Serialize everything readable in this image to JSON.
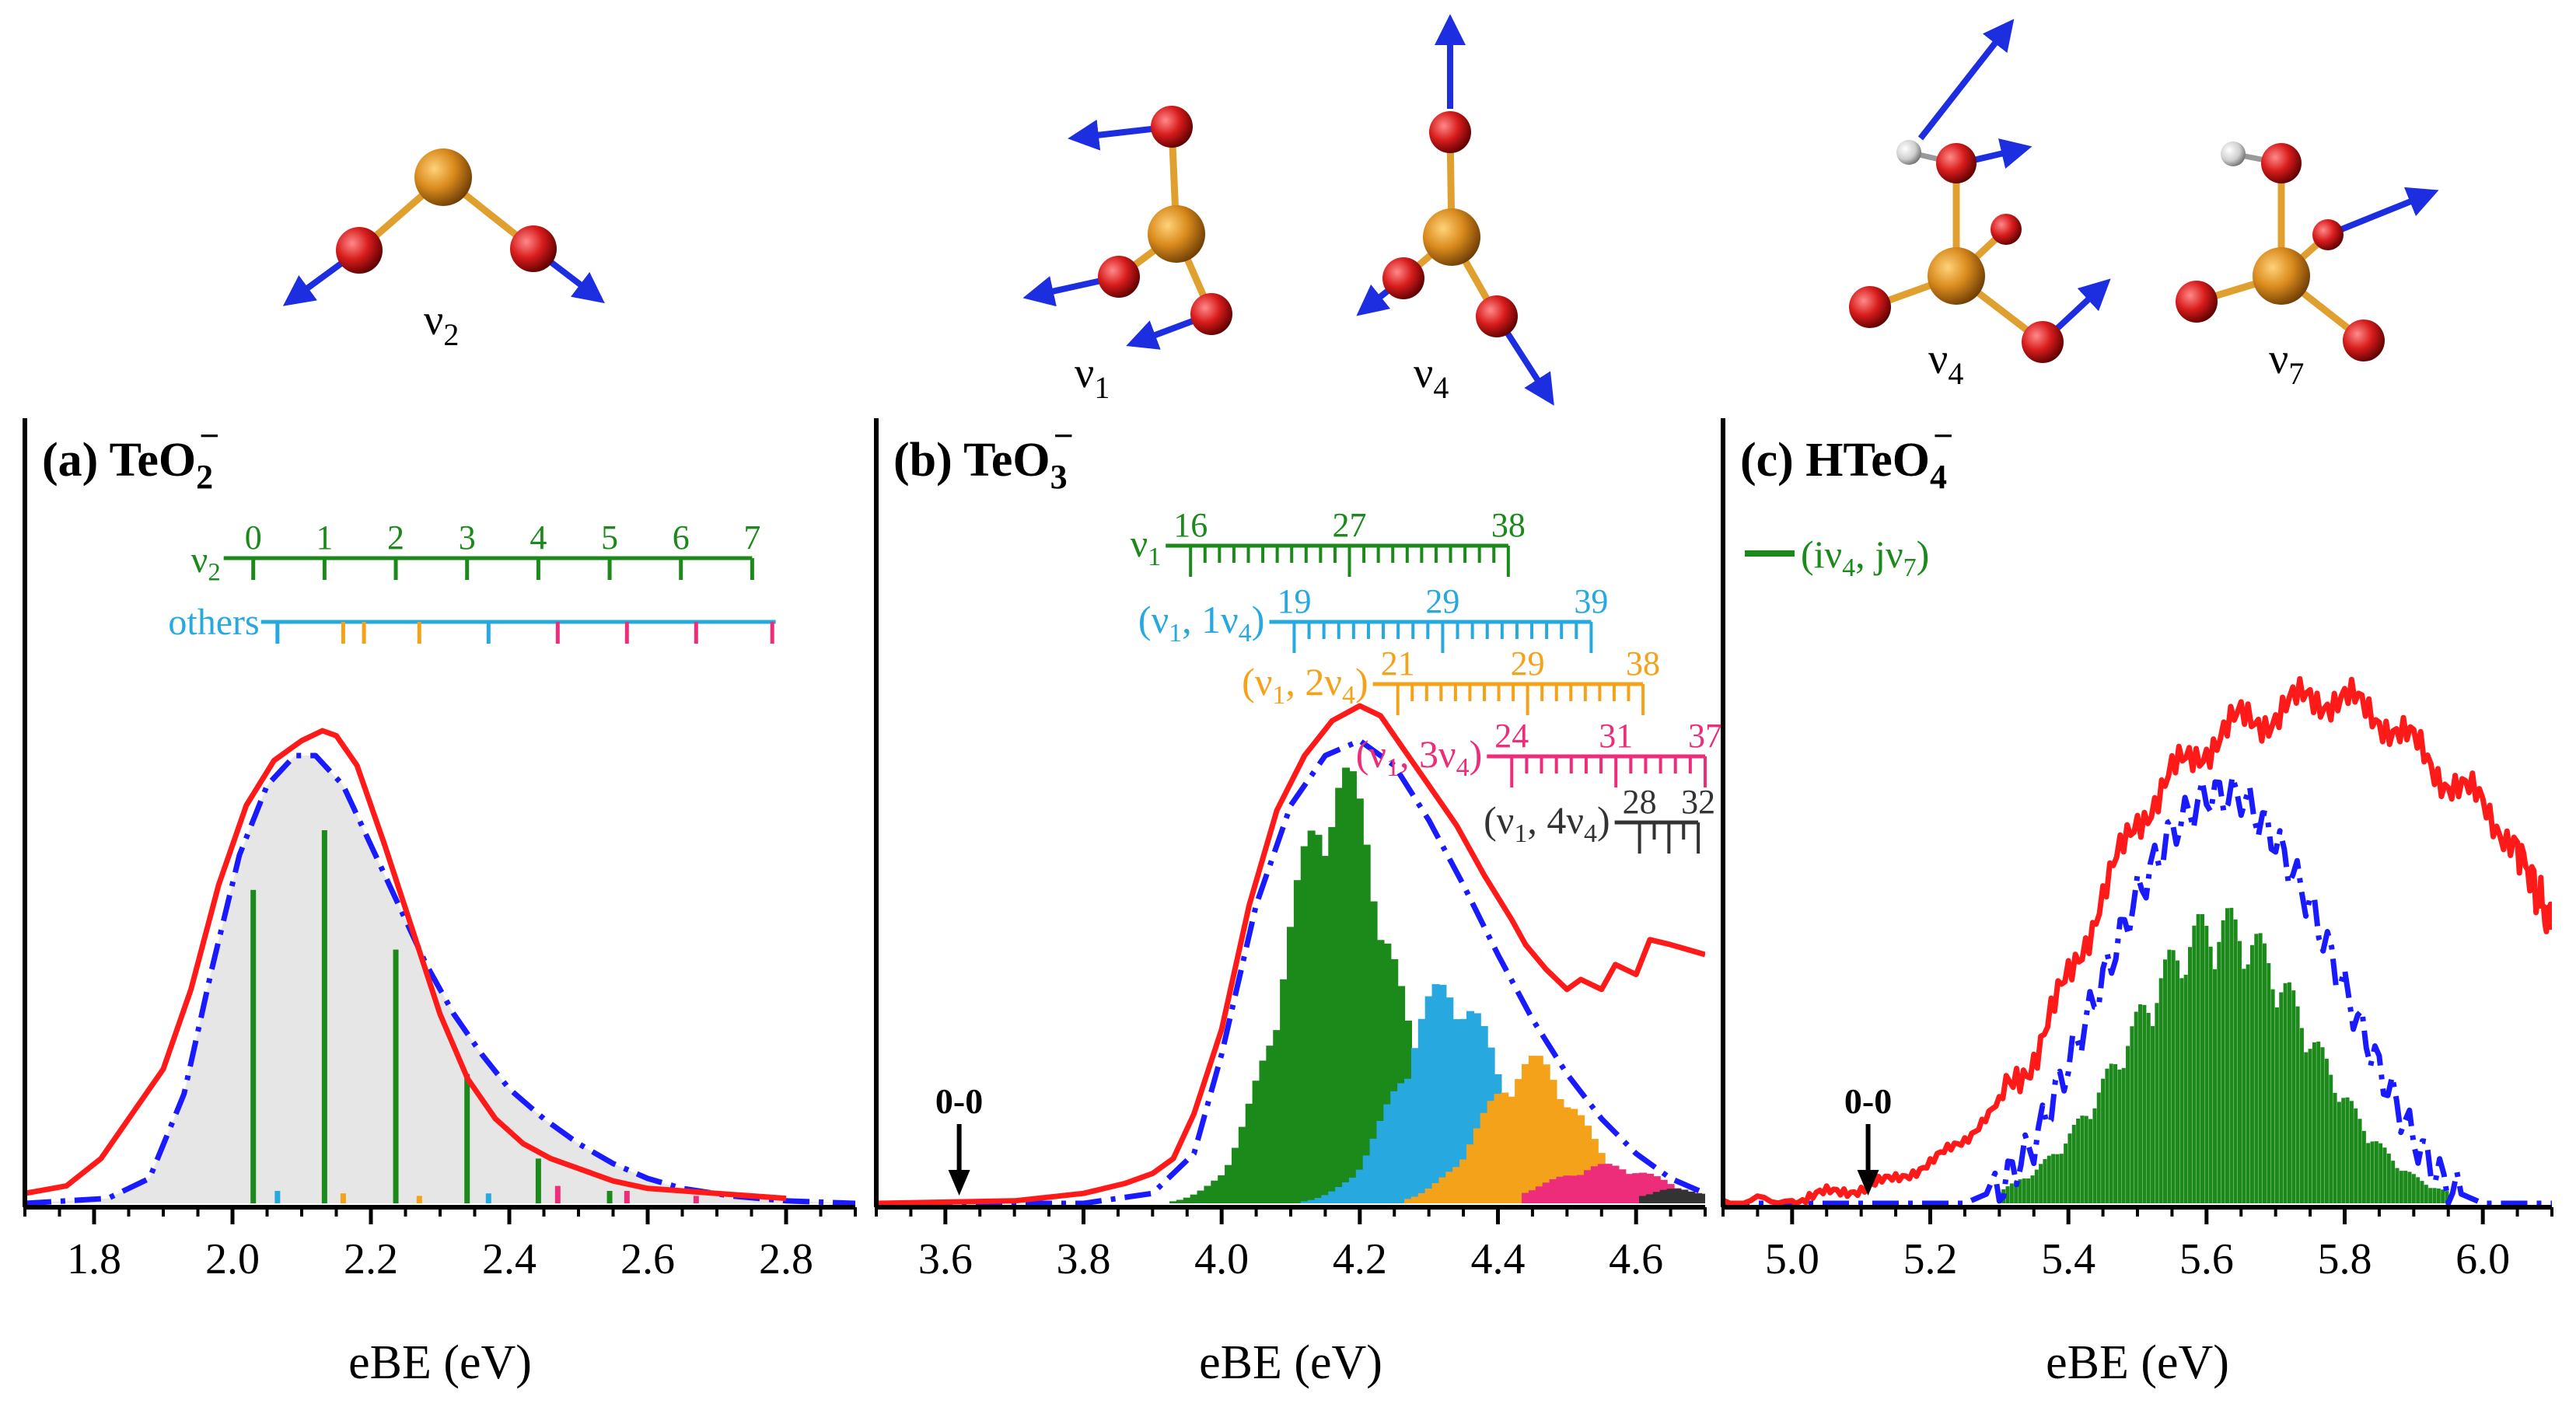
{
  "colors": {
    "experiment": "#ff1a1a",
    "simulation": "#1a1aff",
    "green": "#1b8a1b",
    "cyan": "#27a9e0",
    "orange": "#f5a21b",
    "magenta": "#ee2d7a",
    "gray": "#333333",
    "fill": "#e6e6e6",
    "te": "#d98a1c",
    "o": "#d81c1c",
    "h": "#d8d8d8",
    "arrow": "#1c2ee0"
  },
  "molecules": {
    "teo2_mode": {
      "sym": "ν",
      "sub": "2"
    },
    "teo3_mode_a": {
      "sym": "ν",
      "sub": "1"
    },
    "teo3_mode_b": {
      "sym": "ν",
      "sub": "4"
    },
    "hteo4_mode_a": {
      "sym": "ν",
      "sub": "4"
    },
    "hteo4_mode_b": {
      "sym": "ν",
      "sub": "7"
    }
  },
  "chart_data": [
    {
      "type": "bar",
      "panel": "(a)",
      "title": {
        "main": "TeO",
        "sub": "2",
        "sup": "−"
      },
      "xlabel": "eBE (eV)",
      "xlim": [
        1.7,
        2.9
      ],
      "ylim": [
        0,
        1
      ],
      "xticks": [
        1.8,
        2.0,
        2.2,
        2.4,
        2.6,
        2.8
      ],
      "xtick_labels": [
        "1.8",
        "2.0",
        "2.2",
        "2.4",
        "2.6",
        "2.8"
      ],
      "progressions": [
        {
          "label": "ν2",
          "color": "green",
          "start": 2.03,
          "spacing": 0.103,
          "count": 8,
          "labels": [
            "0",
            "1",
            "2",
            "3",
            "4",
            "5",
            "6",
            "7"
          ]
        },
        {
          "label": "others",
          "color": "cyan",
          "ticks": [
            {
              "x": 2.065,
              "c": "cyan"
            },
            {
              "x": 2.16,
              "c": "orange"
            },
            {
              "x": 2.19,
              "c": "orange"
            },
            {
              "x": 2.27,
              "c": "orange"
            },
            {
              "x": 2.37,
              "c": "cyan"
            },
            {
              "x": 2.47,
              "c": "magenta"
            },
            {
              "x": 2.57,
              "c": "magenta"
            },
            {
              "x": 2.67,
              "c": "magenta"
            },
            {
              "x": 2.78,
              "c": "magenta"
            }
          ]
        }
      ],
      "sticks": [
        {
          "x": 2.03,
          "y": 0.63,
          "c": "green"
        },
        {
          "x": 2.133,
          "y": 0.75,
          "c": "green"
        },
        {
          "x": 2.236,
          "y": 0.51,
          "c": "green"
        },
        {
          "x": 2.339,
          "y": 0.26,
          "c": "green"
        },
        {
          "x": 2.442,
          "y": 0.09,
          "c": "green"
        },
        {
          "x": 2.545,
          "y": 0.025,
          "c": "green"
        },
        {
          "x": 2.065,
          "y": 0.025,
          "c": "cyan"
        },
        {
          "x": 2.16,
          "y": 0.02,
          "c": "orange"
        },
        {
          "x": 2.27,
          "y": 0.015,
          "c": "orange"
        },
        {
          "x": 2.37,
          "y": 0.02,
          "c": "cyan"
        },
        {
          "x": 2.47,
          "y": 0.035,
          "c": "magenta"
        },
        {
          "x": 2.57,
          "y": 0.025,
          "c": "magenta"
        },
        {
          "x": 2.67,
          "y": 0.015,
          "c": "magenta"
        }
      ],
      "experiment": [
        [
          1.7,
          0.02
        ],
        [
          1.76,
          0.035
        ],
        [
          1.81,
          0.09
        ],
        [
          1.86,
          0.19
        ],
        [
          1.9,
          0.27
        ],
        [
          1.94,
          0.43
        ],
        [
          1.98,
          0.64
        ],
        [
          2.02,
          0.8
        ],
        [
          2.06,
          0.89
        ],
        [
          2.1,
          0.93
        ],
        [
          2.13,
          0.95
        ],
        [
          2.15,
          0.94
        ],
        [
          2.18,
          0.88
        ],
        [
          2.22,
          0.72
        ],
        [
          2.26,
          0.55
        ],
        [
          2.3,
          0.38
        ],
        [
          2.34,
          0.25
        ],
        [
          2.38,
          0.17
        ],
        [
          2.42,
          0.12
        ],
        [
          2.46,
          0.09
        ],
        [
          2.5,
          0.07
        ],
        [
          2.55,
          0.045
        ],
        [
          2.6,
          0.03
        ],
        [
          2.7,
          0.02
        ],
        [
          2.8,
          0.01
        ]
      ],
      "simulation": [
        [
          1.7,
          0.0
        ],
        [
          1.82,
          0.01
        ],
        [
          1.88,
          0.05
        ],
        [
          1.93,
          0.22
        ],
        [
          1.97,
          0.47
        ],
        [
          2.01,
          0.7
        ],
        [
          2.05,
          0.84
        ],
        [
          2.09,
          0.9
        ],
        [
          2.12,
          0.9
        ],
        [
          2.16,
          0.84
        ],
        [
          2.2,
          0.72
        ],
        [
          2.24,
          0.6
        ],
        [
          2.28,
          0.48
        ],
        [
          2.32,
          0.38
        ],
        [
          2.36,
          0.3
        ],
        [
          2.4,
          0.23
        ],
        [
          2.45,
          0.17
        ],
        [
          2.5,
          0.12
        ],
        [
          2.55,
          0.08
        ],
        [
          2.6,
          0.05
        ],
        [
          2.65,
          0.03
        ],
        [
          2.72,
          0.015
        ],
        [
          2.8,
          0.005
        ],
        [
          2.9,
          0.0
        ]
      ]
    },
    {
      "type": "bar",
      "panel": "(b)",
      "title": {
        "main": "TeO",
        "sub": "3",
        "sup": "−"
      },
      "xlabel": "eBE (eV)",
      "xlim": [
        3.5,
        4.7
      ],
      "ylim": [
        0,
        1
      ],
      "xticks": [
        3.6,
        3.8,
        4.0,
        4.2,
        4.4,
        4.6
      ],
      "xtick_labels": [
        "3.6",
        "3.8",
        "4.0",
        "4.2",
        "4.4",
        "4.6"
      ],
      "annotation": {
        "label": "0-0",
        "x": 3.62
      },
      "progressions": [
        {
          "label": "ν1",
          "color": "green",
          "start": 3.955,
          "end": 4.415,
          "ticks": 23,
          "nums": [
            "16",
            "27",
            "38"
          ]
        },
        {
          "label": "(ν1, 1ν4)",
          "color": "cyan",
          "start": 4.105,
          "end": 4.535,
          "ticks": 21,
          "nums": [
            "19",
            "29",
            "39"
          ]
        },
        {
          "label": "(ν1, 2ν4)",
          "color": "orange",
          "start": 4.255,
          "end": 4.61,
          "ticks": 18,
          "nums": [
            "21",
            "29",
            "38"
          ]
        },
        {
          "label": "(ν1, 3ν4)",
          "color": "magenta",
          "start": 4.42,
          "end": 4.7,
          "ticks": 14,
          "nums": [
            "24",
            "31",
            "37"
          ]
        },
        {
          "label": "(ν1, 4ν4)",
          "color": "gray",
          "start": 4.605,
          "end": 4.69,
          "ticks": 5,
          "nums": [
            "28",
            "32"
          ]
        }
      ],
      "series_gaussians": [
        {
          "color": "green",
          "center": 4.17,
          "width": 0.075,
          "height": 0.9,
          "start": 3.93,
          "end": 4.44,
          "step": 0.01
        },
        {
          "color": "cyan",
          "center": 4.33,
          "width": 0.07,
          "height": 0.46,
          "start": 4.12,
          "end": 4.6,
          "step": 0.01
        },
        {
          "color": "orange",
          "center": 4.45,
          "width": 0.07,
          "height": 0.3,
          "start": 4.27,
          "end": 4.7,
          "step": 0.01
        },
        {
          "color": "magenta",
          "center": 4.56,
          "width": 0.08,
          "height": 0.08,
          "start": 4.44,
          "end": 4.7,
          "step": 0.01
        },
        {
          "color": "gray",
          "center": 4.66,
          "width": 0.05,
          "height": 0.03,
          "start": 4.61,
          "end": 4.7,
          "step": 0.01
        }
      ],
      "experiment": [
        [
          3.5,
          0.0
        ],
        [
          3.7,
          0.005
        ],
        [
          3.8,
          0.02
        ],
        [
          3.86,
          0.04
        ],
        [
          3.9,
          0.06
        ],
        [
          3.93,
          0.09
        ],
        [
          3.96,
          0.18
        ],
        [
          4.0,
          0.35
        ],
        [
          4.04,
          0.6
        ],
        [
          4.08,
          0.79
        ],
        [
          4.12,
          0.9
        ],
        [
          4.16,
          0.97
        ],
        [
          4.2,
          1.0
        ],
        [
          4.23,
          0.98
        ],
        [
          4.26,
          0.92
        ],
        [
          4.3,
          0.84
        ],
        [
          4.34,
          0.76
        ],
        [
          4.38,
          0.66
        ],
        [
          4.42,
          0.57
        ],
        [
          4.44,
          0.52
        ],
        [
          4.47,
          0.47
        ],
        [
          4.5,
          0.43
        ],
        [
          4.52,
          0.45
        ],
        [
          4.55,
          0.43
        ],
        [
          4.57,
          0.48
        ],
        [
          4.6,
          0.46
        ],
        [
          4.62,
          0.53
        ],
        [
          4.65,
          0.52
        ],
        [
          4.7,
          0.5
        ]
      ],
      "simulation": [
        [
          3.5,
          0.0
        ],
        [
          3.8,
          0.0
        ],
        [
          3.9,
          0.02
        ],
        [
          3.96,
          0.1
        ],
        [
          4.0,
          0.3
        ],
        [
          4.05,
          0.6
        ],
        [
          4.1,
          0.8
        ],
        [
          4.15,
          0.9
        ],
        [
          4.2,
          0.93
        ],
        [
          4.25,
          0.88
        ],
        [
          4.3,
          0.77
        ],
        [
          4.35,
          0.64
        ],
        [
          4.4,
          0.5
        ],
        [
          4.45,
          0.37
        ],
        [
          4.5,
          0.26
        ],
        [
          4.55,
          0.17
        ],
        [
          4.6,
          0.1
        ],
        [
          4.65,
          0.05
        ],
        [
          4.7,
          0.02
        ]
      ]
    },
    {
      "type": "bar",
      "panel": "(c)",
      "title": {
        "main": "HTeO",
        "sub": "4",
        "sup": "−"
      },
      "xlabel": "eBE (eV)",
      "xlim": [
        4.9,
        6.1
      ],
      "ylim": [
        0,
        1
      ],
      "xticks": [
        5.0,
        5.2,
        5.4,
        5.6,
        5.8,
        6.0
      ],
      "xtick_labels": [
        "5.0",
        "5.2",
        "5.4",
        "5.6",
        "5.8",
        "6.0"
      ],
      "annotation": {
        "label": "0-0",
        "x": 5.11
      },
      "legend": {
        "text": "(iν4, jν7)",
        "color": "green"
      },
      "series_gaussians": [
        {
          "color": "green",
          "center": 5.62,
          "width": 0.13,
          "height": 0.6,
          "start": 5.3,
          "end": 5.95,
          "step": 0.006
        }
      ],
      "experiment": [
        [
          4.9,
          0.0
        ],
        [
          5.0,
          0.005
        ],
        [
          5.05,
          0.02
        ],
        [
          5.1,
          0.03
        ],
        [
          5.15,
          0.05
        ],
        [
          5.2,
          0.08
        ],
        [
          5.25,
          0.13
        ],
        [
          5.3,
          0.2
        ],
        [
          5.35,
          0.3
        ],
        [
          5.4,
          0.45
        ],
        [
          5.45,
          0.62
        ],
        [
          5.5,
          0.77
        ],
        [
          5.55,
          0.86
        ],
        [
          5.6,
          0.92
        ],
        [
          5.65,
          0.97
        ],
        [
          5.7,
          0.98
        ],
        [
          5.75,
          1.02
        ],
        [
          5.8,
          1.01
        ],
        [
          5.85,
          0.98
        ],
        [
          5.9,
          0.92
        ],
        [
          5.95,
          0.85
        ],
        [
          6.0,
          0.8
        ],
        [
          6.05,
          0.72
        ],
        [
          6.08,
          0.62
        ],
        [
          6.1,
          0.55
        ]
      ],
      "simulation": [
        [
          4.9,
          0.0
        ],
        [
          5.25,
          0.0
        ],
        [
          5.3,
          0.03
        ],
        [
          5.35,
          0.12
        ],
        [
          5.4,
          0.28
        ],
        [
          5.45,
          0.45
        ],
        [
          5.5,
          0.62
        ],
        [
          5.55,
          0.75
        ],
        [
          5.6,
          0.82
        ],
        [
          5.65,
          0.82
        ],
        [
          5.7,
          0.73
        ],
        [
          5.75,
          0.6
        ],
        [
          5.8,
          0.43
        ],
        [
          5.85,
          0.27
        ],
        [
          5.9,
          0.13
        ],
        [
          5.95,
          0.03
        ],
        [
          6.0,
          0.0
        ],
        [
          6.1,
          0.0
        ]
      ]
    }
  ]
}
